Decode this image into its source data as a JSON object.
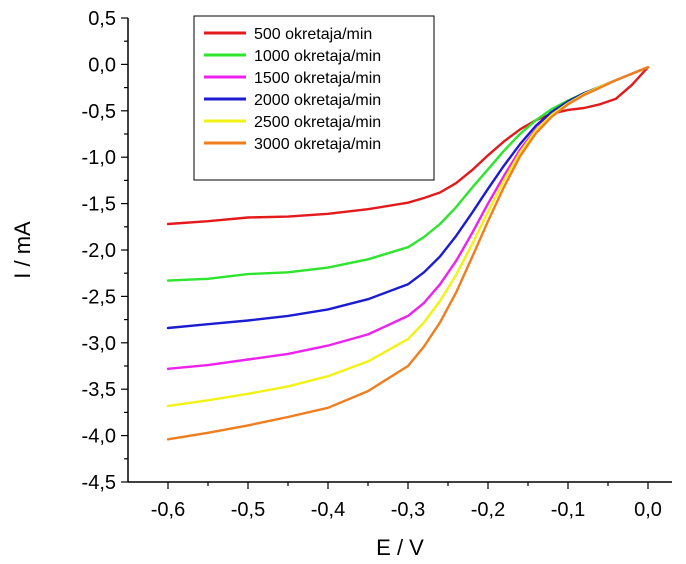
{
  "chart_data": {
    "type": "line",
    "xlabel": "E / V",
    "ylabel": "I / mA",
    "xlim": [
      -0.65,
      0.03
    ],
    "ylim": [
      -4.5,
      0.5
    ],
    "xticks": [
      -0.6,
      -0.5,
      -0.4,
      -0.3,
      -0.2,
      -0.1,
      0.0
    ],
    "xtick_labels": [
      "-0,6",
      "-0,5",
      "-0,4",
      "-0,3",
      "-0,2",
      "-0,1",
      "0,0"
    ],
    "yticks": [
      0.5,
      0.0,
      -0.5,
      -1.0,
      -1.5,
      -2.0,
      -2.5,
      -3.0,
      -3.5,
      -4.0,
      -4.5
    ],
    "ytick_labels": [
      "0,5",
      "0,0",
      "-0,5",
      "-1,0",
      "-1,5",
      "-2,0",
      "-2,5",
      "-3,0",
      "-3,5",
      "-4,0",
      "-4,5"
    ],
    "grid": false,
    "legend_position": "top-left",
    "series": [
      {
        "name": "500 okretaja/min",
        "color": "#e31a1c",
        "x": [
          -0.6,
          -0.55,
          -0.5,
          -0.45,
          -0.4,
          -0.35,
          -0.3,
          -0.28,
          -0.26,
          -0.24,
          -0.22,
          -0.2,
          -0.18,
          -0.16,
          -0.14,
          -0.12,
          -0.1,
          -0.08,
          -0.06,
          -0.04,
          -0.02,
          0.0
        ],
        "y": [
          -1.72,
          -1.69,
          -1.65,
          -1.64,
          -1.61,
          -1.56,
          -1.49,
          -1.44,
          -1.38,
          -1.28,
          -1.14,
          -0.98,
          -0.83,
          -0.7,
          -0.6,
          -0.53,
          -0.49,
          -0.47,
          -0.43,
          -0.37,
          -0.22,
          -0.03
        ]
      },
      {
        "name": "1000 okretaja/min",
        "color": "#2ce52c",
        "x": [
          -0.6,
          -0.55,
          -0.5,
          -0.45,
          -0.4,
          -0.35,
          -0.3,
          -0.28,
          -0.26,
          -0.24,
          -0.22,
          -0.2,
          -0.18,
          -0.16,
          -0.14,
          -0.12,
          -0.1,
          -0.08,
          -0.06,
          -0.04,
          -0.02,
          0.0
        ],
        "y": [
          -2.33,
          -2.31,
          -2.26,
          -2.24,
          -2.19,
          -2.1,
          -1.97,
          -1.86,
          -1.72,
          -1.54,
          -1.33,
          -1.13,
          -0.93,
          -0.75,
          -0.6,
          -0.48,
          -0.39,
          -0.31,
          -0.24,
          -0.17,
          -0.1,
          -0.03
        ]
      },
      {
        "name": "1500 okretaja/min",
        "color": "#ee22ee",
        "x": [
          -0.6,
          -0.55,
          -0.5,
          -0.45,
          -0.4,
          -0.35,
          -0.3,
          -0.28,
          -0.26,
          -0.24,
          -0.22,
          -0.2,
          -0.18,
          -0.16,
          -0.14,
          -0.12,
          -0.1,
          -0.08,
          -0.06,
          -0.04,
          -0.02,
          0.0
        ],
        "y": [
          -3.28,
          -3.24,
          -3.18,
          -3.12,
          -3.03,
          -2.91,
          -2.71,
          -2.57,
          -2.37,
          -2.12,
          -1.82,
          -1.5,
          -1.2,
          -0.92,
          -0.7,
          -0.53,
          -0.41,
          -0.32,
          -0.24,
          -0.17,
          -0.1,
          -0.03
        ]
      },
      {
        "name": "2000 okretaja/min",
        "color": "#1c1cd0",
        "x": [
          -0.6,
          -0.55,
          -0.5,
          -0.45,
          -0.4,
          -0.35,
          -0.3,
          -0.28,
          -0.26,
          -0.24,
          -0.22,
          -0.2,
          -0.18,
          -0.16,
          -0.14,
          -0.12,
          -0.1,
          -0.08,
          -0.06,
          -0.04,
          -0.02,
          0.0
        ],
        "y": [
          -2.84,
          -2.8,
          -2.76,
          -2.71,
          -2.64,
          -2.53,
          -2.37,
          -2.24,
          -2.07,
          -1.85,
          -1.6,
          -1.34,
          -1.09,
          -0.86,
          -0.66,
          -0.51,
          -0.4,
          -0.31,
          -0.24,
          -0.17,
          -0.1,
          -0.03
        ]
      },
      {
        "name": "2500 okretaja/min",
        "color": "#f2f214",
        "x": [
          -0.6,
          -0.55,
          -0.5,
          -0.45,
          -0.4,
          -0.35,
          -0.3,
          -0.28,
          -0.26,
          -0.24,
          -0.22,
          -0.2,
          -0.18,
          -0.16,
          -0.14,
          -0.12,
          -0.1,
          -0.08,
          -0.06,
          -0.04,
          -0.02,
          0.0
        ],
        "y": [
          -3.68,
          -3.62,
          -3.55,
          -3.47,
          -3.36,
          -3.2,
          -2.96,
          -2.78,
          -2.55,
          -2.27,
          -1.94,
          -1.59,
          -1.25,
          -0.95,
          -0.71,
          -0.54,
          -0.42,
          -0.32,
          -0.24,
          -0.17,
          -0.1,
          -0.03
        ]
      },
      {
        "name": "3000 okretaja/min",
        "color": "#f07d1e",
        "x": [
          -0.6,
          -0.55,
          -0.5,
          -0.45,
          -0.4,
          -0.35,
          -0.3,
          -0.28,
          -0.26,
          -0.24,
          -0.22,
          -0.2,
          -0.18,
          -0.16,
          -0.14,
          -0.12,
          -0.1,
          -0.08,
          -0.06,
          -0.04,
          -0.02,
          0.0
        ],
        "y": [
          -4.04,
          -3.97,
          -3.89,
          -3.8,
          -3.7,
          -3.52,
          -3.25,
          -3.04,
          -2.78,
          -2.46,
          -2.08,
          -1.69,
          -1.32,
          -0.99,
          -0.74,
          -0.56,
          -0.43,
          -0.33,
          -0.25,
          -0.17,
          -0.1,
          -0.03
        ]
      }
    ]
  }
}
